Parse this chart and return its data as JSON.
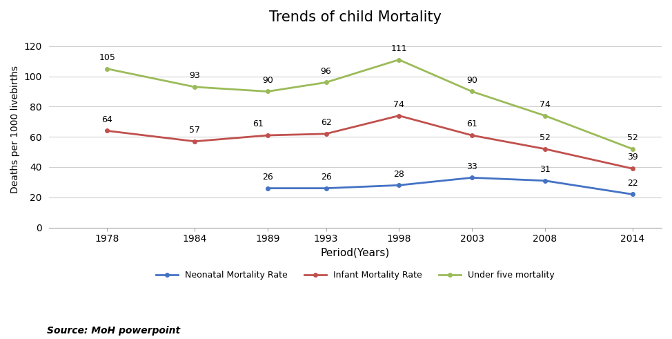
{
  "title": "Trends of child Mortality",
  "xlabel": "Period(Years)",
  "ylabel": "Deaths per 1000 livebirths",
  "years": [
    1978,
    1984,
    1989,
    1993,
    1998,
    2003,
    2008,
    2014
  ],
  "neonatal_years": [
    1989,
    1993,
    1998,
    2003,
    2008,
    2014
  ],
  "neonatal": [
    26,
    26,
    28,
    33,
    31,
    22
  ],
  "infant": [
    64,
    57,
    61,
    62,
    74,
    61,
    52,
    39
  ],
  "under_five": [
    105,
    93,
    90,
    96,
    111,
    90,
    74,
    52
  ],
  "neonatal_color": "#4472C4",
  "infant_color": "#C0504D",
  "under_five_color": "#9BBB59",
  "neonatal_label": "Neonatal Mortality Rate",
  "infant_label": "Infant Mortality Rate",
  "under_five_label": "Under five mortality",
  "ylim": [
    0,
    130
  ],
  "yticks": [
    0,
    20,
    40,
    60,
    80,
    100,
    120
  ],
  "source_text": "Source: MoH powerpoint",
  "background_color": "#ffffff",
  "grid_color": "#d0d0d0",
  "title_fontsize": 15,
  "label_fontsize": 10,
  "annotation_fontsize": 9,
  "legend_fontsize": 9,
  "source_fontsize": 10
}
